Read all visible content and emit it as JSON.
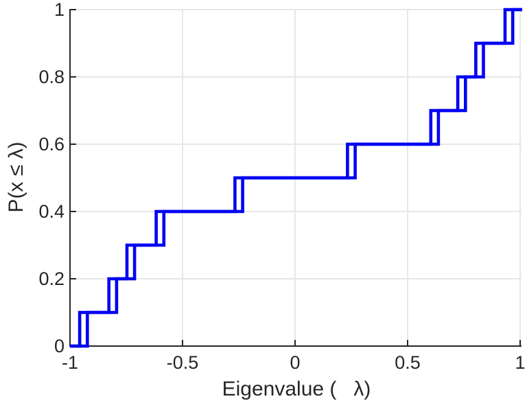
{
  "figure": {
    "background_color": "#ffffff",
    "axis_color": "#262626",
    "grid_color": "#e7e7e7",
    "line_color": "#0000f2"
  },
  "chart_data": {
    "type": "line",
    "subtype": "empirical-cdf-stairs",
    "title": "",
    "xlabel": "Eigenvalue (   λ)",
    "ylabel": "P(x ≤ λ)",
    "xlim": [
      -1,
      1
    ],
    "ylim": [
      0,
      1
    ],
    "grid": true,
    "legend": "none",
    "x_ticks": [
      -1,
      -0.5,
      0,
      0.5,
      1
    ],
    "x_tick_labels": [
      "-1",
      "-0.5",
      "0",
      "0.5",
      "1"
    ],
    "y_ticks": [
      0,
      0.2,
      0.4,
      0.6,
      0.8,
      1
    ],
    "y_tick_labels": [
      "0",
      "0.2",
      "0.4",
      "0.6",
      "0.8",
      "1"
    ],
    "eigenvalues": [
      -0.94,
      -0.81,
      -0.73,
      -0.6,
      -0.25,
      0.25,
      0.62,
      0.74,
      0.82,
      0.95
    ],
    "cdf_levels": [
      0.1,
      0.2,
      0.3,
      0.4,
      0.5,
      0.6,
      0.7,
      0.8,
      0.9,
      1.0
    ],
    "series": [
      {
        "name": "ecdf-step-curve",
        "jump_size": 0.1,
        "n_points": 10
      }
    ],
    "double_stroke_offset": 0.017
  }
}
